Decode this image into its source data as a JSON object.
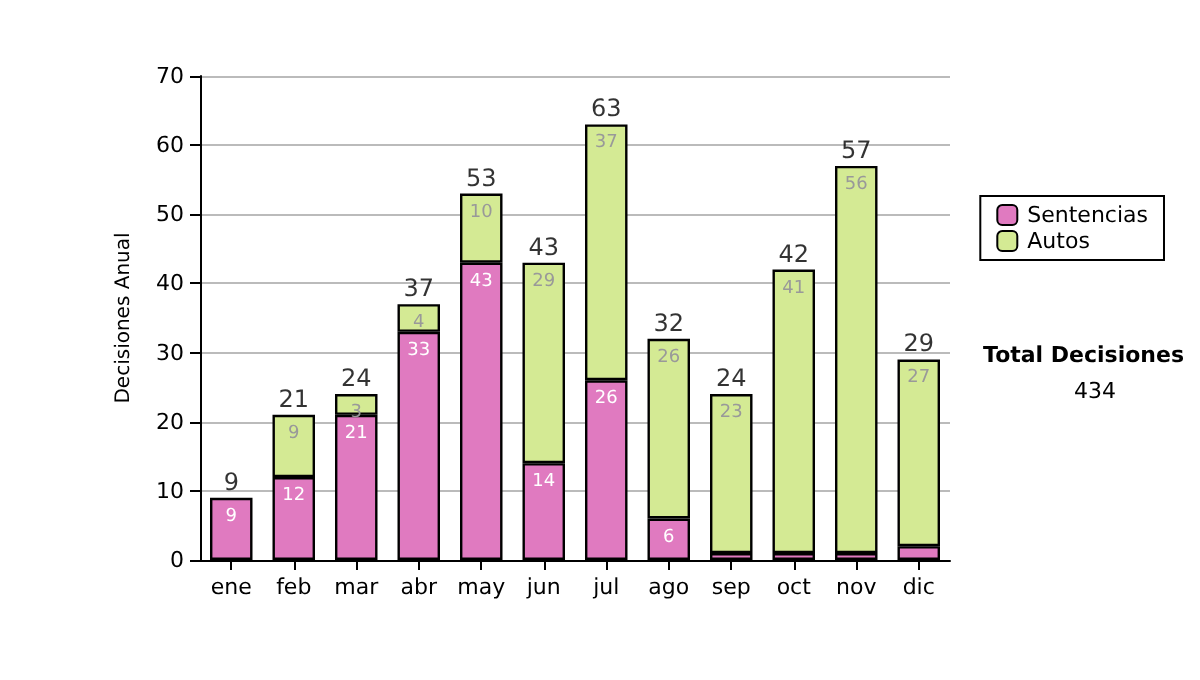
{
  "chart_data": {
    "type": "bar",
    "stacked": true,
    "ylabel": "Decisiones Anual",
    "categories": [
      "ene",
      "feb",
      "mar",
      "abr",
      "may",
      "jun",
      "jul",
      "ago",
      "sep",
      "oct",
      "nov",
      "dic"
    ],
    "series": [
      {
        "name": "Sentencias",
        "color": "#e07ac0",
        "values": [
          9,
          12,
          21,
          33,
          43,
          14,
          26,
          6,
          1,
          1,
          1,
          2
        ],
        "value_labels": [
          "9",
          "12",
          "21",
          "33",
          "43",
          "14",
          "26",
          "6",
          null,
          null,
          null,
          null
        ]
      },
      {
        "name": "Autos",
        "color": "#d4ea94",
        "values": [
          0,
          9,
          3,
          4,
          10,
          29,
          37,
          26,
          23,
          41,
          56,
          27
        ],
        "value_labels": [
          null,
          "9",
          "3",
          "4",
          "10",
          "29",
          "37",
          "26",
          "23",
          "41",
          "56",
          "27"
        ]
      }
    ],
    "totals": [
      "9",
      "21",
      "24",
      "37",
      "53",
      "43",
      "63",
      "32",
      "24",
      "42",
      "57",
      "29"
    ],
    "ylim": [
      0,
      70
    ],
    "yticks": [
      0,
      10,
      20,
      30,
      40,
      50,
      60,
      70
    ],
    "grid": "y",
    "legend": "right",
    "annotations": [
      "Total Decisiones",
      "434"
    ]
  }
}
